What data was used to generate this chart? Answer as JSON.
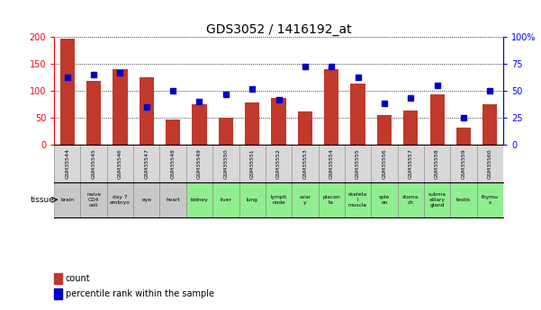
{
  "title": "GDS3052 / 1416192_at",
  "gsm_labels": [
    "GSM35544",
    "GSM35545",
    "GSM35546",
    "GSM35547",
    "GSM35548",
    "GSM35549",
    "GSM35550",
    "GSM35551",
    "GSM35552",
    "GSM35553",
    "GSM35554",
    "GSM35555",
    "GSM35556",
    "GSM35557",
    "GSM35558",
    "GSM35559",
    "GSM35560"
  ],
  "tissue_labels": [
    "brain",
    "naive\nCD4\ncell",
    "day 7\nembryо",
    "eye",
    "heart",
    "kidney",
    "liver",
    "lung",
    "lymph\nnode",
    "ovar\ny",
    "placen\nta",
    "skeleta\nl\nmuscle",
    "sple\nen",
    "stoma\nch",
    "subma\nxillary\ngland",
    "testis",
    "thymu\ns"
  ],
  "tissue_colors": [
    "#c8c8c8",
    "#c8c8c8",
    "#c8c8c8",
    "#c8c8c8",
    "#c8c8c8",
    "#90ee90",
    "#90ee90",
    "#90ee90",
    "#90ee90",
    "#90ee90",
    "#90ee90",
    "#90ee90",
    "#90ee90",
    "#90ee90",
    "#90ee90",
    "#90ee90",
    "#90ee90"
  ],
  "gsm_bg_color": "#d8d8d8",
  "counts": [
    198,
    118,
    140,
    125,
    47,
    75,
    50,
    78,
    86,
    61,
    140,
    113,
    55,
    63,
    93,
    32,
    75
  ],
  "percentiles": [
    63,
    65,
    67,
    35,
    50,
    40,
    47,
    52,
    42,
    73,
    73,
    63,
    38,
    43,
    55,
    25,
    50
  ],
  "bar_color": "#c0392b",
  "dot_color": "#0000cc",
  "left_ylim": [
    0,
    200
  ],
  "right_ylim": [
    0,
    100
  ],
  "left_yticks": [
    0,
    50,
    100,
    150,
    200
  ],
  "right_yticks": [
    0,
    25,
    50,
    75,
    100
  ],
  "right_yticklabels": [
    "0",
    "25",
    "50",
    "75",
    "100%"
  ]
}
